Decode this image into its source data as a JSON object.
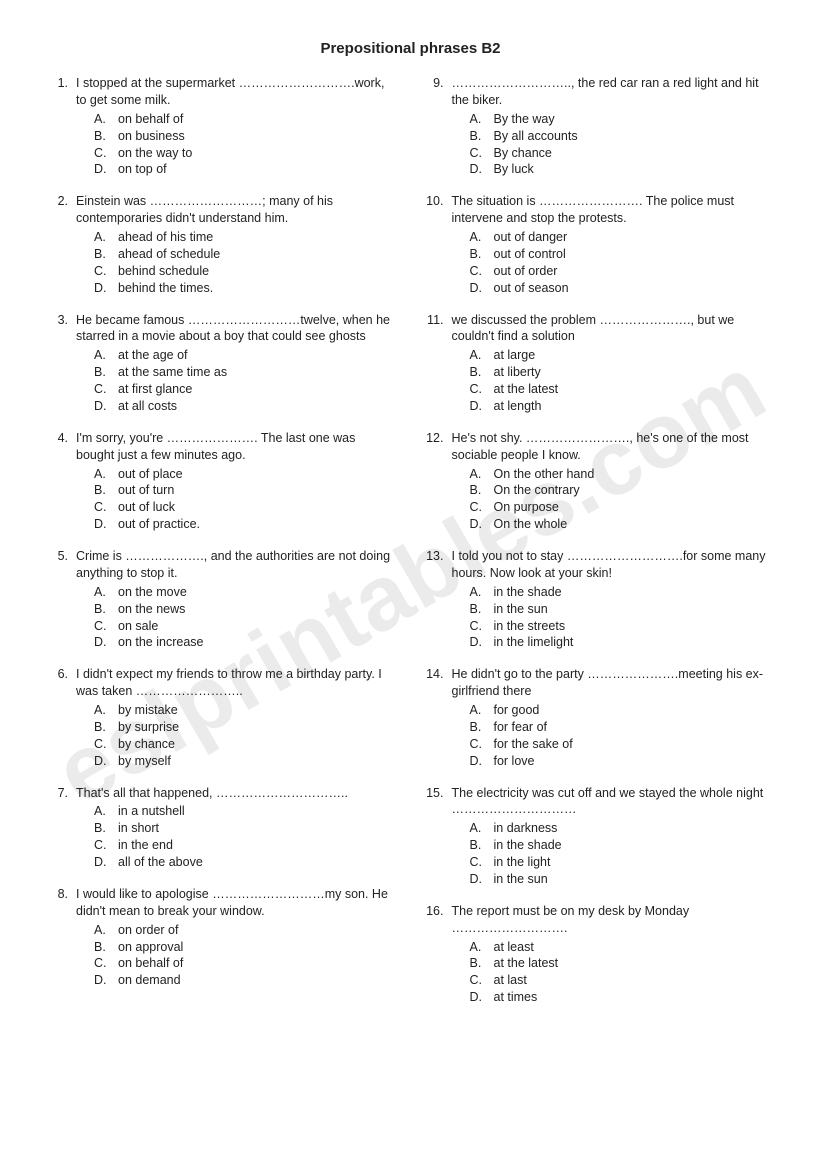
{
  "title": "Prepositional phrases B2",
  "watermark": "eslprintables.com",
  "left": [
    {
      "n": "1.",
      "q": "I stopped at the supermarket ……………………….work, to get some milk.",
      "c": [
        "on behalf of",
        "on business",
        "on the way to",
        "on top of"
      ]
    },
    {
      "n": "2.",
      "q": "Einstein was ………………………; many of his contemporaries didn't understand him.",
      "c": [
        "ahead of his time",
        "ahead of schedule",
        "behind schedule",
        "behind the times."
      ]
    },
    {
      "n": "3.",
      "q": "He became famous ………………………twelve, when he starred in a movie about a boy that could see ghosts",
      "c": [
        "at the age of",
        "at the same time as",
        "at first glance",
        "at all costs"
      ]
    },
    {
      "n": "4.",
      "q": "I'm sorry, you're …………………. The last one was bought just a few minutes ago.",
      "c": [
        "out of place",
        "out of turn",
        "out of luck",
        "out of practice."
      ]
    },
    {
      "n": "5.",
      "q": "Crime is ………………., and the authorities are not doing anything to stop it.",
      "c": [
        "on the move",
        "on the news",
        "on sale",
        "on the increase"
      ]
    },
    {
      "n": "6.",
      "q": "I didn't expect my friends to throw me a birthday party. I was taken ……………………..",
      "c": [
        "by mistake",
        "by surprise",
        "by chance",
        "by myself"
      ]
    },
    {
      "n": "7.",
      "q": "That's all that happened, …………………………..",
      "c": [
        "in a nutshell",
        "in short",
        "in the end",
        "all of the above"
      ]
    },
    {
      "n": "8.",
      "q": "I would like to apologise ………………………my son. He didn't mean to break your window.",
      "c": [
        "on order of",
        "on approval",
        "on behalf of",
        "on demand"
      ]
    }
  ],
  "right": [
    {
      "n": "9.",
      "q": "……………………….., the red car ran a red light and hit the biker.",
      "c": [
        "By the way",
        "By all accounts",
        "By chance",
        "By luck"
      ]
    },
    {
      "n": "10.",
      "q": "The situation is ……………………. The police must intervene and stop the protests.",
      "c": [
        "out of danger",
        "out of control",
        "out of order",
        "out of season"
      ]
    },
    {
      "n": "11.",
      "q": "we discussed the problem …………………., but we couldn't find a solution",
      "c": [
        "at large",
        "at liberty",
        "at the latest",
        "at length"
      ]
    },
    {
      "n": "12.",
      "q": "He's not shy. ……………………., he's one of the most sociable people I know.",
      "c": [
        "On the other hand",
        "On the contrary",
        "On purpose",
        "On the whole"
      ]
    },
    {
      "n": "13.",
      "q": "I told you not to stay ……………………….for some many hours. Now look at your skin!",
      "c": [
        "in the shade",
        "in the sun",
        "in the streets",
        "in the limelight"
      ]
    },
    {
      "n": "14.",
      "q": "He didn't go to the party ………………….meeting his ex-girlfriend there",
      "c": [
        "for good",
        "for fear of",
        "for the sake of",
        "for love"
      ]
    },
    {
      "n": "15.",
      "q": "The electricity was cut off and we stayed the whole night …………………………",
      "c": [
        "in darkness",
        "in the shade",
        "in the light",
        "in the sun"
      ]
    },
    {
      "n": "16.",
      "q": "The report must be on my desk by Monday ……………………….",
      "c": [
        "at least",
        "at the latest",
        "at last",
        "at times"
      ]
    }
  ],
  "letters": [
    "A.",
    "B.",
    "C.",
    "D."
  ]
}
